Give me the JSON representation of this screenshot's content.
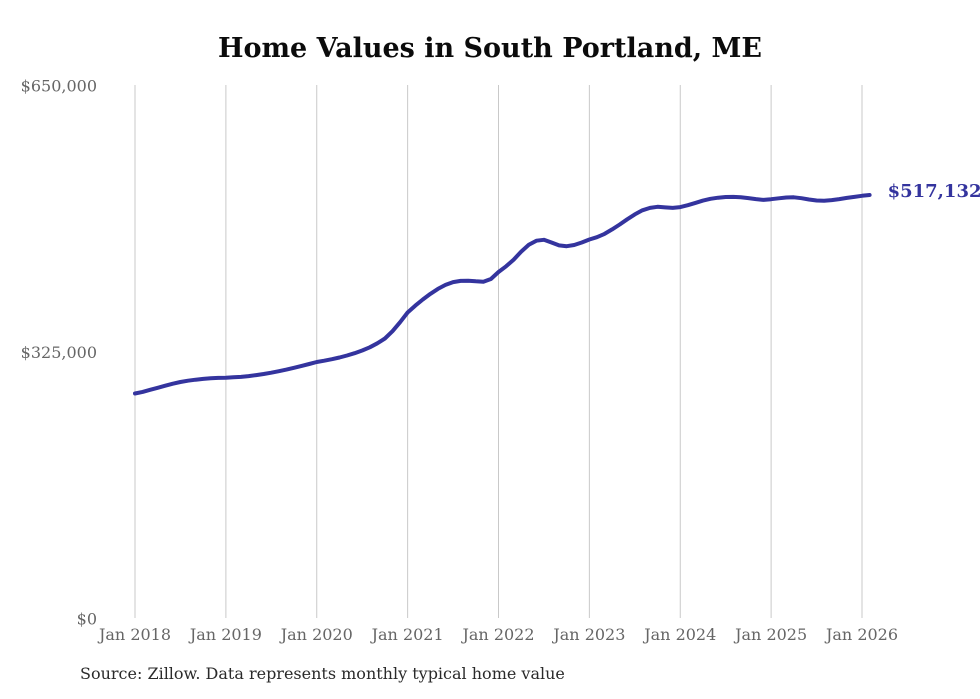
{
  "chart_data": {
    "type": "line",
    "title": "Home Values in South Portland, ME",
    "end_label": "$517,132",
    "source_note": "Source: Zillow. Data represents monthly typical home value",
    "x_tick_labels": [
      "Jan 2018",
      "Jan 2019",
      "Jan 2020",
      "Jan 2021",
      "Jan 2022",
      "Jan 2023",
      "Jan 2024",
      "Jan 2025",
      "Jan 2026"
    ],
    "y_ticks": [
      {
        "value": 0,
        "label": "$0"
      },
      {
        "value": 325000,
        "label": "$325,000"
      },
      {
        "value": 650000,
        "label": "$650,000"
      }
    ],
    "ylim": [
      0,
      650000
    ],
    "x_start": "Jan 2018",
    "x_end": "Feb 2026",
    "x_frequency": "monthly",
    "grid": "vertical-only",
    "legend": "none",
    "line_color": "#34349e",
    "grid_color": "#c9c9c9",
    "tick_color": "#666666",
    "title_color": "#0b0b0b",
    "series": [
      {
        "name": "Typical home value ($)",
        "values": [
          275000,
          277000,
          279500,
          282000,
          284500,
          287000,
          289000,
          290600,
          291800,
          292800,
          293500,
          294000,
          294300,
          294700,
          295300,
          296200,
          297400,
          298800,
          300400,
          302200,
          304200,
          306400,
          308700,
          311000,
          313400,
          315000,
          316800,
          318900,
          321300,
          324100,
          327400,
          331400,
          336200,
          342100,
          351000,
          362000,
          373800,
          382100,
          389600,
          396500,
          402500,
          407400,
          410800,
          412300,
          412600,
          411800,
          411300,
          414600,
          423200,
          430100,
          438200,
          448100,
          456400,
          461400,
          462500,
          459100,
          455600,
          454600,
          456100,
          459100,
          462800,
          465600,
          469600,
          475100,
          481100,
          487500,
          493400,
          498400,
          501400,
          502700,
          502000,
          501300,
          502300,
          504600,
          507500,
          510200,
          512400,
          513800,
          514600,
          514800,
          514300,
          513300,
          512100,
          511100,
          511900,
          513000,
          514000,
          514300,
          513200,
          511600,
          510400,
          510100,
          510900,
          512100,
          513500,
          514700,
          516100,
          517132
        ]
      }
    ]
  }
}
